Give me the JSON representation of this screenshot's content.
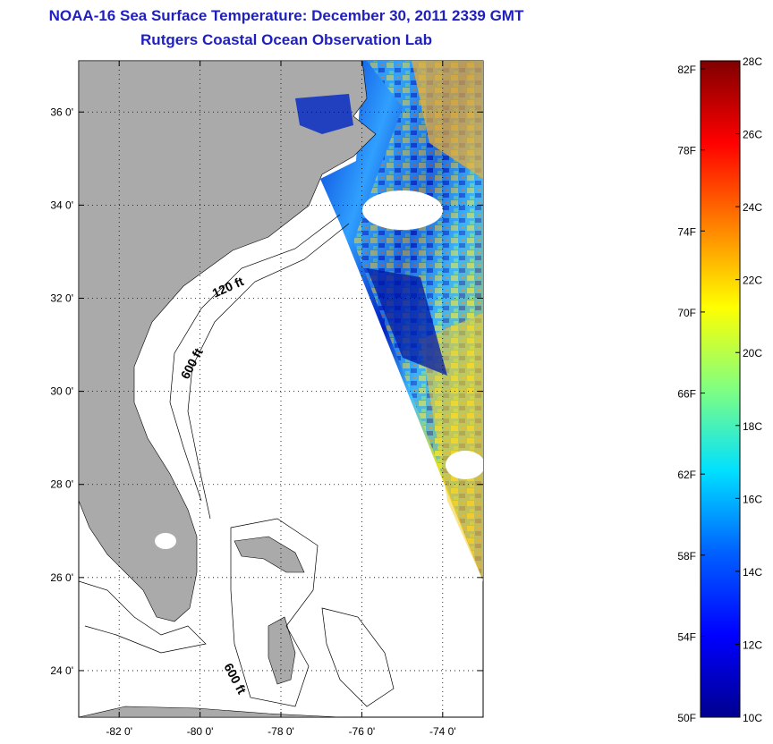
{
  "header": {
    "title_line1": "NOAA-16 Sea Surface Temperature:  December 30, 2011 2339 GMT",
    "title_line2": "Rutgers Coastal Ocean Observation Lab"
  },
  "map": {
    "lat_ticks": [
      "36 0'",
      "34 0'",
      "32 0'",
      "30 0'",
      "28 0'",
      "26 0'",
      "24 0'"
    ],
    "lon_ticks": [
      "-82 0'",
      "-80 0'",
      "-78 0'",
      "-76 0'",
      "-74 0'"
    ],
    "lat_range": [
      23,
      37.1
    ],
    "lon_range": [
      -83,
      -73
    ],
    "contour_labels": [
      "120 ft",
      "600 ft",
      "600 ft"
    ],
    "grid": true,
    "land_color": "#aaaaaa",
    "ocean_color": "#ffffff"
  },
  "colorbar": {
    "fahrenheit_labels": [
      "82F",
      "78F",
      "74F",
      "70F",
      "66F",
      "62F",
      "58F",
      "54F",
      "50F"
    ],
    "celsius_labels": [
      "28C",
      "26C",
      "24C",
      "22C",
      "20C",
      "18C",
      "16C",
      "14C",
      "12C",
      "10C"
    ],
    "range_c": [
      10,
      28
    ],
    "colormap": [
      "#00008f",
      "#0000ff",
      "#0080ff",
      "#00ffff",
      "#80ff80",
      "#ffff00",
      "#ff8000",
      "#ff0000",
      "#800000"
    ]
  }
}
